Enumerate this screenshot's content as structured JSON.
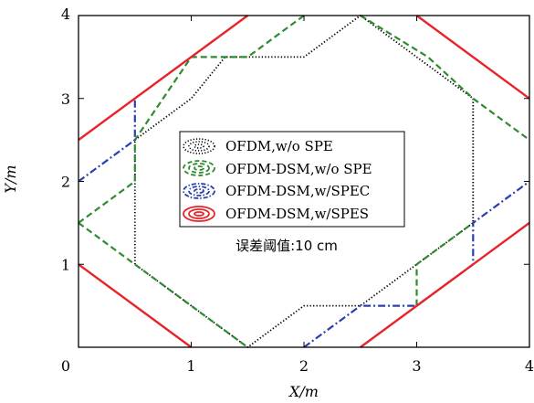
{
  "chart_data": {
    "type": "line",
    "title": "",
    "xlabel": "X/m",
    "ylabel": "Y/m",
    "xlim": [
      0,
      4
    ],
    "ylim": [
      0,
      4
    ],
    "xticks": [
      "0",
      "1",
      "2",
      "3",
      "4"
    ],
    "yticks": [
      "1",
      "2",
      "3",
      "4"
    ],
    "grid": false,
    "legend_position": "center",
    "annotation": "误差阈值:10 cm",
    "series": [
      {
        "name": "OFDM,w/o SPE",
        "color": "#000000",
        "style": "dotted",
        "segments": [
          [
            [
              0.5,
              1.0
            ],
            [
              0.5,
              2.5
            ],
            [
              1.0,
              3.0
            ],
            [
              1.3,
              3.5
            ],
            [
              1.5,
              3.5
            ],
            [
              2.0,
              3.5
            ],
            [
              2.5,
              4.0
            ],
            [
              2.5,
              4.0
            ],
            [
              3.0,
              3.5
            ],
            [
              3.5,
              3.0
            ],
            [
              3.5,
              1.5
            ],
            [
              3.0,
              1.0
            ],
            [
              2.5,
              0.5
            ],
            [
              2.0,
              0.5
            ],
            [
              1.5,
              0.0
            ],
            [
              1.0,
              0.5
            ],
            [
              0.5,
              1.0
            ]
          ]
        ]
      },
      {
        "name": "OFDM-DSM,w/o SPE",
        "color": "#2e8b2e",
        "style": "dashed",
        "segments": [
          [
            [
              0.0,
              1.5
            ],
            [
              0.5,
              1.0
            ],
            [
              1.5,
              0.0
            ]
          ],
          [
            [
              0.0,
              1.5
            ],
            [
              0.5,
              2.0
            ],
            [
              0.5,
              2.5
            ],
            [
              1.0,
              3.5
            ],
            [
              1.5,
              3.5
            ],
            [
              2.0,
              4.0
            ]
          ],
          [
            [
              2.5,
              4.0
            ],
            [
              3.1,
              3.5
            ],
            [
              3.5,
              3.0
            ],
            [
              4.0,
              2.5
            ]
          ],
          [
            [
              3.0,
              0.5
            ],
            [
              3.0,
              1.0
            ],
            [
              3.5,
              1.5
            ]
          ]
        ]
      },
      {
        "name": "OFDM-DSM,w/SPEC",
        "color": "#2a3fb0",
        "style": "dashdot",
        "segments": [
          [
            [
              0.0,
              2.0
            ],
            [
              0.5,
              2.5
            ],
            [
              0.5,
              3.0
            ]
          ],
          [
            [
              2.0,
              0.0
            ],
            [
              2.5,
              0.5
            ],
            [
              3.0,
              0.5
            ],
            [
              3.5,
              1.0
            ],
            [
              3.5,
              1.5
            ],
            [
              4.0,
              2.0
            ]
          ]
        ]
      },
      {
        "name": "OFDM-DSM,w/SPES",
        "color": "#e8242a",
        "style": "solid",
        "segments": [
          [
            [
              0.0,
              1.0
            ],
            [
              1.0,
              0.0
            ]
          ],
          [
            [
              0.0,
              2.5
            ],
            [
              1.0,
              3.5
            ],
            [
              1.5,
              4.0
            ]
          ],
          [
            [
              3.0,
              4.0
            ],
            [
              4.0,
              3.0
            ]
          ],
          [
            [
              2.5,
              0.0
            ],
            [
              4.0,
              1.5
            ]
          ]
        ]
      }
    ]
  }
}
